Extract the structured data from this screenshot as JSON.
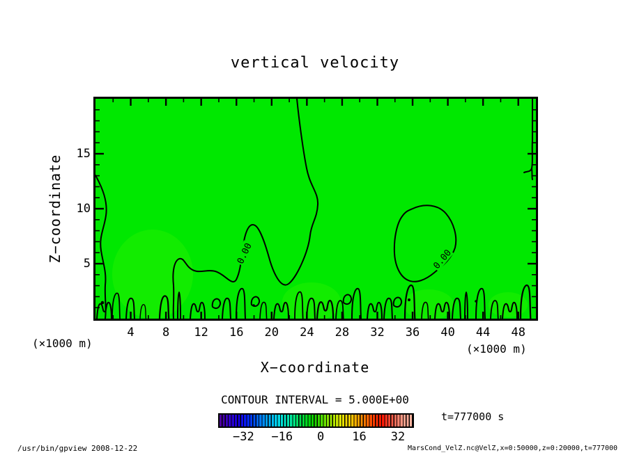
{
  "title": "vertical velocity",
  "axes": {
    "x_label": "X−coordinate",
    "x_unit": "(×1000 m)",
    "y_label": "Z−coordinate",
    "y_unit": "(×1000 m)",
    "x_ticks": [
      4,
      8,
      12,
      16,
      20,
      24,
      28,
      32,
      36,
      40,
      44,
      48
    ],
    "y_ticks": [
      5,
      10,
      15
    ],
    "x_minor_step": 2,
    "y_minor_step": 1,
    "x_range": [
      0,
      50
    ],
    "y_range": [
      0,
      20
    ]
  },
  "contour_label": "0.00",
  "colorbar": {
    "title": "CONTOUR INTERVAL = 5.000E+00",
    "tick_labels": [
      "−32",
      "−16",
      "0",
      "16",
      "32"
    ],
    "tick_values": [
      -32,
      -16,
      0,
      16,
      32
    ],
    "range": [
      -42.5,
      37.5
    ],
    "stops": [
      "#50009b",
      "#3100c8",
      "#1400e6",
      "#0032ff",
      "#0078ff",
      "#00b4ff",
      "#00e1e1",
      "#00e6a0",
      "#00dc46",
      "#00d200",
      "#46dc00",
      "#a0e600",
      "#e6e600",
      "#ffc800",
      "#ff8c00",
      "#ff4600",
      "#ff1400",
      "#ff5a46",
      "#ff9b87",
      "#ffb9a5"
    ],
    "separator_color": "#000000"
  },
  "annotations": {
    "time": "t=777000 s"
  },
  "footer": {
    "left": "/usr/bin/gpview  2008-12-22",
    "right": "MarsCond_VelZ.nc@VelZ,x=0:50000,z=0:20000,t=777000"
  },
  "colors": {
    "field_green": "#00e800",
    "contour_line": "#000000",
    "background": "#ffffff"
  },
  "chart_data": {
    "type": "heatmap",
    "subtype": "filled-contour",
    "title": "vertical velocity",
    "xlabel": "X-coordinate (×1000 m)",
    "ylabel": "Z-coordinate (×1000 m)",
    "x_range": [
      0,
      50
    ],
    "z_range": [
      0,
      20
    ],
    "x_ticks": [
      4,
      8,
      12,
      16,
      20,
      24,
      28,
      32,
      36,
      40,
      44,
      48
    ],
    "z_ticks": [
      5,
      10,
      15
    ],
    "contour_interval": 5.0,
    "contour_levels_visible": [
      0.0
    ],
    "field_description": "Vertical velocity field nearly uniform around 0 (entire domain in the 0 color band); a single 0.00 contour winds from the top boundary near x=23 down through mid-domain, a closed 0.00 contour blob near x=35-42, z=4-10, contour hugging left edge below z=13 and right edge above z=13, and many fine-scale zero contours along the bottom boundary z<1.5",
    "colorbar": {
      "ticks": [
        -32,
        -16,
        0,
        16,
        32
      ],
      "range": [
        -42.5,
        37.5
      ]
    },
    "time": "t=777000 s",
    "legend_position": "bottom",
    "grid": false
  }
}
